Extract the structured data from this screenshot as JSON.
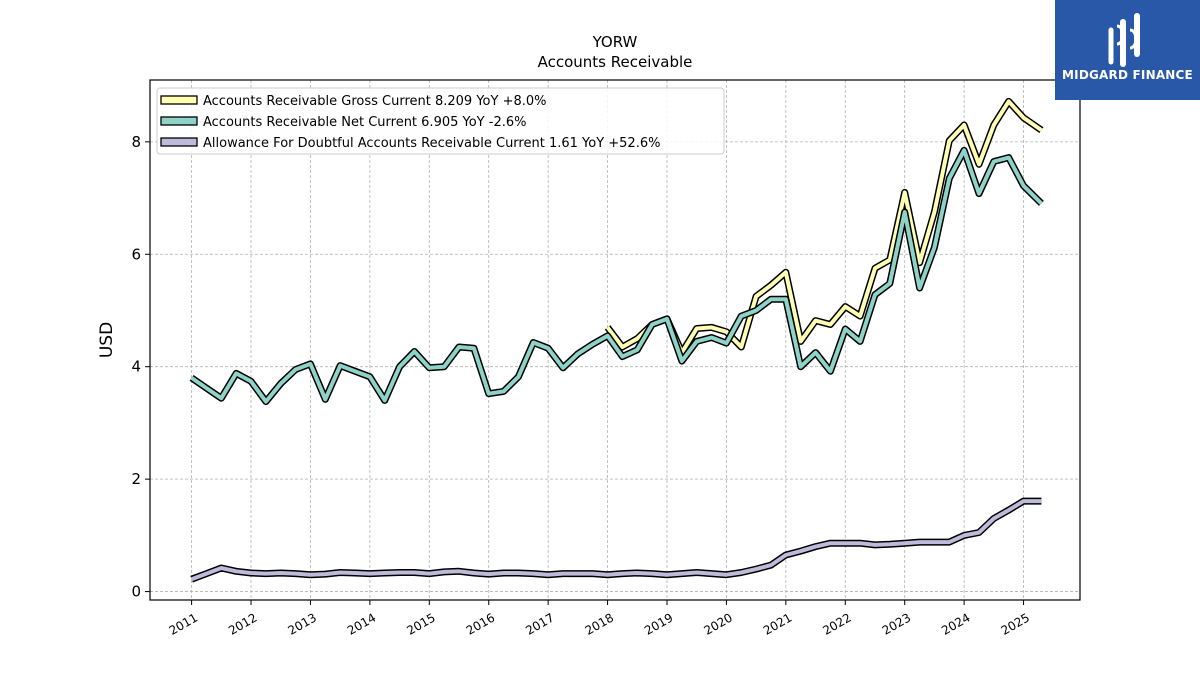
{
  "chart_data": {
    "type": "line",
    "title": "YORW",
    "subtitle": "Accounts Receivable",
    "ylabel": "USD",
    "xlabel": "",
    "ylim": [
      -0.15,
      9.1
    ],
    "xlim": [
      2010.3,
      2025.95
    ],
    "yticks": [
      0,
      2,
      4,
      6,
      8
    ],
    "xticks": [
      "2011",
      "2012",
      "2013",
      "2014",
      "2015",
      "2016",
      "2017",
      "2018",
      "2019",
      "2020",
      "2021",
      "2022",
      "2023",
      "2024",
      "2025"
    ],
    "grid": true,
    "legend_position": "top-left",
    "series": [
      {
        "name": "Accounts Receivable Gross Current  8.209 YoY +8.0%",
        "color": "#ffffb3",
        "x": [
          2018.0,
          2018.25,
          2018.5,
          2018.75,
          2019.0,
          2019.25,
          2019.5,
          2019.75,
          2020.0,
          2020.25,
          2020.5,
          2020.75,
          2021.0,
          2021.25,
          2021.5,
          2021.75,
          2022.0,
          2022.25,
          2022.5,
          2022.75,
          2023.0,
          2023.25,
          2023.5,
          2023.75,
          2024.0,
          2024.25,
          2024.5,
          2024.75,
          2025.0,
          2025.3
        ],
        "y": [
          4.7,
          4.35,
          4.5,
          4.75,
          4.85,
          4.25,
          4.68,
          4.7,
          4.62,
          4.35,
          5.25,
          5.45,
          5.68,
          4.45,
          4.82,
          4.75,
          5.07,
          4.9,
          5.75,
          5.9,
          7.1,
          5.85,
          6.75,
          8.02,
          8.3,
          7.6,
          8.3,
          8.72,
          8.43,
          8.209
        ]
      },
      {
        "name": "Accounts Receivable Net Current  6.905 YoY -2.6%",
        "color": "#8dd3c7",
        "x": [
          2011.0,
          2011.25,
          2011.5,
          2011.75,
          2012.0,
          2012.25,
          2012.5,
          2012.75,
          2013.0,
          2013.25,
          2013.5,
          2013.75,
          2014.0,
          2014.25,
          2014.5,
          2014.75,
          2015.0,
          2015.25,
          2015.5,
          2015.75,
          2016.0,
          2016.25,
          2016.5,
          2016.75,
          2017.0,
          2017.25,
          2017.5,
          2017.75,
          2018.0,
          2018.25,
          2018.5,
          2018.75,
          2019.0,
          2019.25,
          2019.5,
          2019.75,
          2020.0,
          2020.25,
          2020.5,
          2020.75,
          2021.0,
          2021.25,
          2021.5,
          2021.75,
          2022.0,
          2022.25,
          2022.5,
          2022.75,
          2023.0,
          2023.25,
          2023.5,
          2023.75,
          2024.0,
          2024.25,
          2024.5,
          2024.75,
          2025.0,
          2025.3
        ],
        "y": [
          3.8,
          3.62,
          3.44,
          3.88,
          3.74,
          3.38,
          3.7,
          3.95,
          4.05,
          3.42,
          4.02,
          3.92,
          3.82,
          3.4,
          4.0,
          4.27,
          3.98,
          4.0,
          4.35,
          4.33,
          3.52,
          3.56,
          3.82,
          4.43,
          4.33,
          3.98,
          4.23,
          4.4,
          4.55,
          4.18,
          4.3,
          4.75,
          4.85,
          4.1,
          4.45,
          4.52,
          4.42,
          4.9,
          5.0,
          5.2,
          5.2,
          4.0,
          4.25,
          3.92,
          4.67,
          4.45,
          5.28,
          5.48,
          6.75,
          5.4,
          6.12,
          7.35,
          7.85,
          7.08,
          7.65,
          7.72,
          7.22,
          6.905
        ]
      },
      {
        "name": "Allowance For Doubtful Accounts Receivable Current  1.61 YoY +52.6%",
        "color": "#bebada",
        "x": [
          2011.0,
          2011.25,
          2011.5,
          2011.75,
          2012.0,
          2012.25,
          2012.5,
          2012.75,
          2013.0,
          2013.25,
          2013.5,
          2013.75,
          2014.0,
          2014.25,
          2014.5,
          2014.75,
          2015.0,
          2015.25,
          2015.5,
          2015.75,
          2016.0,
          2016.25,
          2016.5,
          2016.75,
          2017.0,
          2017.25,
          2017.5,
          2017.75,
          2018.0,
          2018.25,
          2018.5,
          2018.75,
          2019.0,
          2019.25,
          2019.5,
          2019.75,
          2020.0,
          2020.25,
          2020.5,
          2020.75,
          2021.0,
          2021.25,
          2021.5,
          2021.75,
          2022.0,
          2022.25,
          2022.5,
          2022.75,
          2023.0,
          2023.25,
          2023.5,
          2023.75,
          2024.0,
          2024.25,
          2024.5,
          2024.75,
          2025.0,
          2025.3
        ],
        "y": [
          0.22,
          0.32,
          0.42,
          0.36,
          0.33,
          0.32,
          0.33,
          0.32,
          0.3,
          0.31,
          0.34,
          0.33,
          0.32,
          0.33,
          0.34,
          0.34,
          0.32,
          0.35,
          0.36,
          0.33,
          0.31,
          0.33,
          0.33,
          0.32,
          0.3,
          0.32,
          0.32,
          0.32,
          0.3,
          0.32,
          0.33,
          0.32,
          0.3,
          0.32,
          0.34,
          0.32,
          0.3,
          0.34,
          0.4,
          0.47,
          0.65,
          0.72,
          0.8,
          0.86,
          0.86,
          0.86,
          0.83,
          0.84,
          0.86,
          0.88,
          0.88,
          0.88,
          1.0,
          1.05,
          1.3,
          1.45,
          1.61,
          1.61
        ]
      }
    ]
  },
  "logo": {
    "text": "MIDGARD FINANCE",
    "background": "#2a58a9"
  }
}
